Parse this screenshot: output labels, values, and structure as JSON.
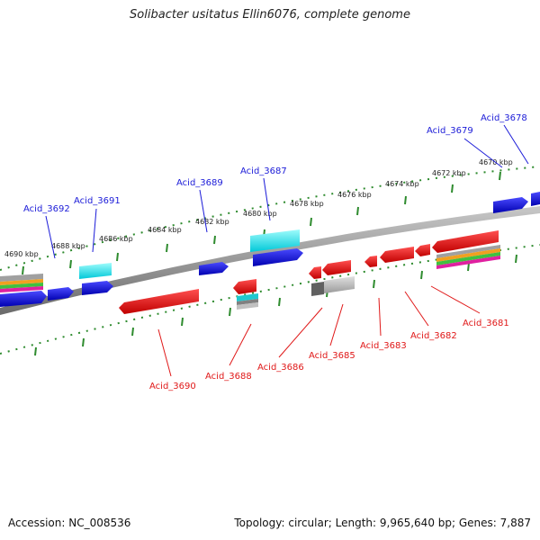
{
  "title": "Solibacter usitatus Ellin6076, complete genome",
  "footer": {
    "accession": "Accession: NC_008536",
    "stats": "Topology: circular; Length: 9,965,640 bp; Genes: 7,887"
  },
  "colors": {
    "forward": "#1b1bd8",
    "reverse": "#e01818",
    "backbone": "#808080",
    "tick": "#2e8b2e",
    "cyan": "#00e0e0"
  },
  "ticks": [
    "4670 kbp",
    "4672 kbp",
    "4674 kbp",
    "4676 kbp",
    "4678 kbp",
    "4680 kbp",
    "4682 kbp",
    "4684 kbp",
    "4686 kbp",
    "4688 kbp",
    "4690 kbp"
  ],
  "forward_labels": [
    "Acid_3678",
    "Acid_3679",
    "Acid_3687",
    "Acid_3689",
    "Acid_3691",
    "Acid_3692"
  ],
  "reverse_labels": [
    "Acid_3681",
    "Acid_3682",
    "Acid_3683",
    "Acid_3685",
    "Acid_3686",
    "Acid_3688",
    "Acid_3690"
  ]
}
